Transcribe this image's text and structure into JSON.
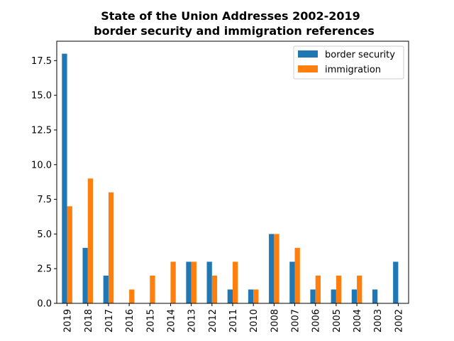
{
  "chart_data": {
    "type": "bar",
    "title": "State of the Union Addresses 2002-2019",
    "subtitle": "border security and immigration references",
    "xlabel": "",
    "ylabel": "",
    "categories": [
      "2019",
      "2018",
      "2017",
      "2016",
      "2015",
      "2014",
      "2013",
      "2012",
      "2011",
      "2010",
      "2008",
      "2007",
      "2006",
      "2005",
      "2004",
      "2003",
      "2002"
    ],
    "series": [
      {
        "name": "border security",
        "color": "#1f77b4",
        "values": [
          18,
          4,
          2,
          0,
          0,
          0,
          3,
          3,
          1,
          1,
          5,
          3,
          1,
          1,
          1,
          1,
          3
        ]
      },
      {
        "name": "immigration",
        "color": "#ff7f0e",
        "values": [
          7,
          9,
          8,
          1,
          2,
          3,
          3,
          2,
          3,
          1,
          5,
          4,
          2,
          2,
          2,
          0,
          0
        ]
      }
    ],
    "ylim": [
      0,
      18.9
    ],
    "yticks": [
      0.0,
      2.5,
      5.0,
      7.5,
      10.0,
      12.5,
      15.0,
      17.5
    ],
    "ytick_labels": [
      "0.0",
      "2.5",
      "5.0",
      "7.5",
      "10.0",
      "12.5",
      "15.0",
      "17.5"
    ],
    "grid": false,
    "legend_position": "top-right"
  }
}
